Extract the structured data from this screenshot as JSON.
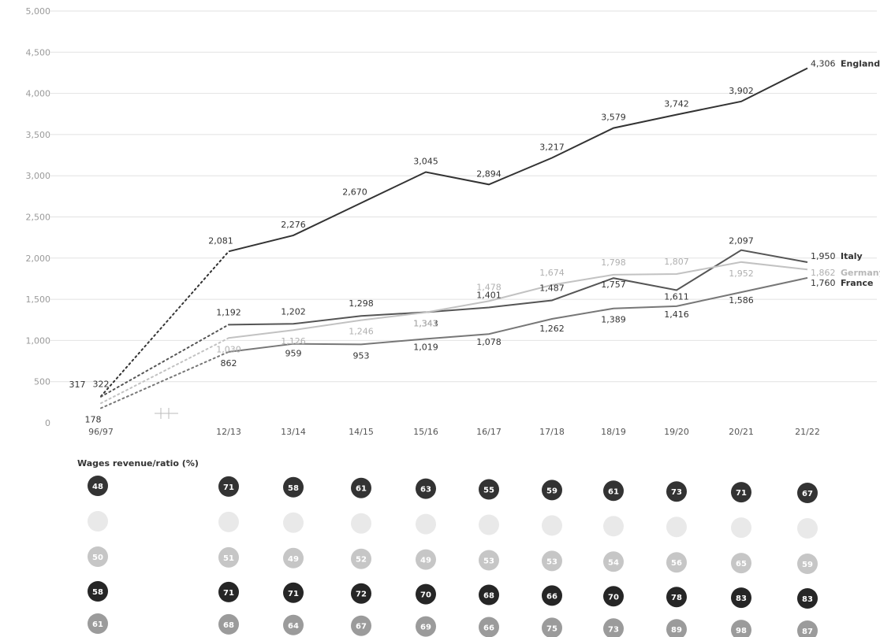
{
  "chart_data": {
    "type": "line",
    "title": "",
    "xlabel": "",
    "ylabel": "",
    "ylim": [
      0,
      5000
    ],
    "yticks": [
      "0",
      "500",
      "1,000",
      "1,500",
      "2,000",
      "2,500",
      "3,000",
      "3,500",
      "4,000",
      "4,500",
      "5,000"
    ],
    "ytick_values": [
      0,
      500,
      1000,
      1500,
      2000,
      2500,
      3000,
      3500,
      4000,
      4500,
      5000
    ],
    "categories": [
      "96/97",
      "12/13",
      "13/14",
      "14/15",
      "15/16",
      "16/17",
      "17/18",
      "18/19",
      "19/20",
      "20/21",
      "21/22"
    ],
    "axis_break_between": [
      "96/97",
      "12/13"
    ],
    "grid": true,
    "series": [
      {
        "name": "England",
        "color": "#333333",
        "values": [
          322,
          2081,
          2276,
          2670,
          3045,
          2894,
          3217,
          3579,
          3742,
          3902,
          4306
        ],
        "labels": [
          "322",
          "2,081",
          "2,276",
          "2,670",
          "3,045",
          "2,894",
          "3,217",
          "3,579",
          "3,742",
          "3,902",
          "4,306"
        ]
      },
      {
        "name": "Italy",
        "color": "#555555",
        "values": [
          317,
          1192,
          1202,
          1298,
          1343,
          1401,
          1487,
          1757,
          1611,
          2097,
          1950
        ],
        "labels": [
          "317",
          "1,192",
          "1,202",
          "1,298",
          "1,343",
          "1,401",
          "1,487",
          "1,757",
          "1,611",
          "2,097",
          "1,950"
        ]
      },
      {
        "name": "Germany",
        "color": "#c2c2c2",
        "values": [
          238,
          1030,
          1126,
          1246,
          1341,
          1478,
          1674,
          1798,
          1807,
          1952,
          1862
        ],
        "labels": [
          "",
          "1,030",
          "1,126",
          "1,246",
          "1,341",
          "1,478",
          "1,674",
          "1,798",
          "1,807",
          "1,952",
          "1,862"
        ]
      },
      {
        "name": "France",
        "color": "#777777",
        "values": [
          178,
          862,
          959,
          953,
          1019,
          1078,
          1262,
          1389,
          1416,
          1586,
          1760
        ],
        "labels": [
          "178",
          "862",
          "959",
          "953",
          "1,019",
          "1,078",
          "1,262",
          "1,389",
          "1,416",
          "1,586",
          "1,760"
        ]
      }
    ],
    "ratio_table": {
      "title": "Wages revenue/ratio (%)",
      "columns": [
        "96/97",
        "12/13",
        "13/14",
        "14/15",
        "15/16",
        "16/17",
        "17/18",
        "18/19",
        "19/20",
        "20/21",
        "21/22"
      ],
      "rows": [
        {
          "color": "#333333",
          "values": [
            "48",
            "71",
            "58",
            "61",
            "63",
            "55",
            "59",
            "61",
            "73",
            "71",
            "67"
          ]
        },
        {
          "color": "#e9e9e9",
          "values": [
            "",
            "",
            "",
            "",
            "",
            "",
            "",
            "",
            "",
            "",
            ""
          ]
        },
        {
          "color": "#c6c6c6",
          "values": [
            "50",
            "51",
            "49",
            "52",
            "49",
            "53",
            "53",
            "54",
            "56",
            "65",
            "59"
          ]
        },
        {
          "color": "#262626",
          "values": [
            "58",
            "71",
            "71",
            "72",
            "70",
            "68",
            "66",
            "70",
            "78",
            "83",
            "83"
          ]
        },
        {
          "color": "#9b9b9b",
          "values": [
            "61",
            "68",
            "64",
            "67",
            "69",
            "66",
            "75",
            "73",
            "89",
            "98",
            "87"
          ]
        }
      ]
    }
  }
}
